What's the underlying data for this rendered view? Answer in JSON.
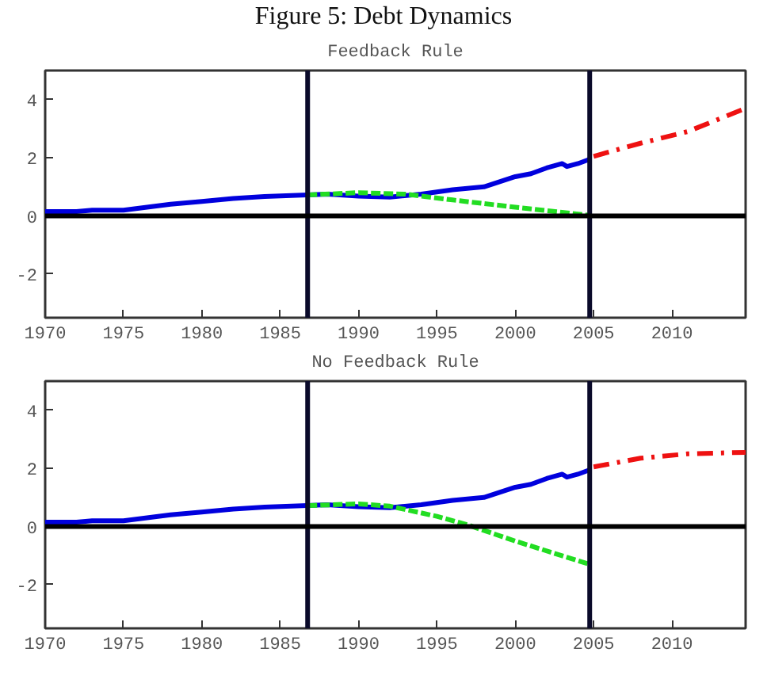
{
  "chart_data": [
    {
      "type": "line",
      "title": "Figure 5: Debt Dynamics",
      "subtitle": "Feedback Rule",
      "xlim": [
        1970,
        2014.7
      ],
      "ylim": [
        -3.5,
        5
      ],
      "xticks": [
        1970,
        1975,
        1980,
        1985,
        1990,
        1995,
        2000,
        2005,
        2010
      ],
      "yticks": [
        -2,
        0,
        2,
        4
      ],
      "grid": false,
      "ref_lines": [
        {
          "axis": "x",
          "value": 1986.75,
          "color": "#0a0a2a"
        },
        {
          "axis": "x",
          "value": 2004.75,
          "color": "#0a0a2a"
        },
        {
          "axis": "y",
          "value": 0,
          "color": "#000000"
        }
      ],
      "series": [
        {
          "color": "#0000dd",
          "line_style": "solid",
          "x": [
            1970,
            1972,
            1973,
            1975,
            1978,
            1980,
            1982,
            1984,
            1986.75,
            1988,
            1990,
            1992,
            1994,
            1996,
            1998,
            2000,
            2001,
            2002,
            2003,
            2003.3,
            2004,
            2004.75
          ],
          "values": [
            0.15,
            0.15,
            0.2,
            0.2,
            0.4,
            0.5,
            0.6,
            0.67,
            0.72,
            0.75,
            0.68,
            0.65,
            0.75,
            0.9,
            1.0,
            1.35,
            1.45,
            1.65,
            1.8,
            1.7,
            1.8,
            1.95
          ]
        },
        {
          "color": "#22dd22",
          "line_style": "dashed",
          "x": [
            1986.75,
            1990,
            1993,
            1996,
            2000,
            2004.75
          ],
          "values": [
            0.72,
            0.8,
            0.75,
            0.55,
            0.3,
            0.02
          ]
        },
        {
          "color": "#ee1111",
          "line_style": "dashdot",
          "x": [
            2005,
            2008,
            2011,
            2014.7
          ],
          "values": [
            2.05,
            2.5,
            2.9,
            3.7
          ]
        }
      ]
    },
    {
      "type": "line",
      "subtitle": "No Feedback Rule",
      "xlim": [
        1970,
        2014.7
      ],
      "ylim": [
        -3.5,
        5
      ],
      "xticks": [
        1970,
        1975,
        1980,
        1985,
        1990,
        1995,
        2000,
        2005,
        2010
      ],
      "yticks": [
        -2,
        0,
        2,
        4
      ],
      "grid": false,
      "ref_lines": [
        {
          "axis": "x",
          "value": 1986.75,
          "color": "#0a0a2a"
        },
        {
          "axis": "x",
          "value": 2004.75,
          "color": "#0a0a2a"
        },
        {
          "axis": "y",
          "value": 0,
          "color": "#000000"
        }
      ],
      "series": [
        {
          "color": "#0000dd",
          "line_style": "solid",
          "x": [
            1970,
            1972,
            1973,
            1975,
            1978,
            1980,
            1982,
            1984,
            1986.75,
            1988,
            1990,
            1992,
            1994,
            1996,
            1998,
            2000,
            2001,
            2002,
            2003,
            2003.3,
            2004,
            2004.75
          ],
          "values": [
            0.15,
            0.15,
            0.2,
            0.2,
            0.4,
            0.5,
            0.6,
            0.67,
            0.72,
            0.75,
            0.68,
            0.65,
            0.75,
            0.9,
            1.0,
            1.35,
            1.45,
            1.65,
            1.8,
            1.7,
            1.8,
            1.95
          ]
        },
        {
          "color": "#22dd22",
          "line_style": "dashed",
          "x": [
            1986.75,
            1990,
            1992,
            1995,
            1997,
            2000,
            2004.75
          ],
          "values": [
            0.72,
            0.78,
            0.7,
            0.35,
            0.05,
            -0.5,
            -1.3
          ]
        },
        {
          "color": "#ee1111",
          "line_style": "dashdot",
          "x": [
            2005,
            2008,
            2011,
            2014.7
          ],
          "values": [
            2.05,
            2.35,
            2.5,
            2.55
          ]
        }
      ]
    }
  ]
}
